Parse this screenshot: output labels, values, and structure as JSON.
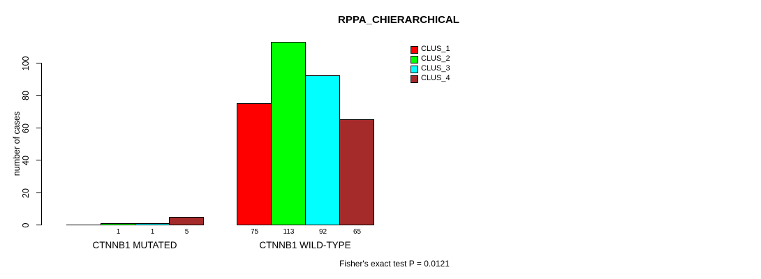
{
  "chart_data": {
    "type": "bar",
    "title": "RPPA_CHIERARCHICAL",
    "xlabel": "",
    "ylabel": "number of cases",
    "categories": [
      "CTNNB1 MUTATED",
      "CTNNB1 WILD-TYPE"
    ],
    "series": [
      {
        "name": "CLUS_1",
        "color": "#ff0000",
        "values": [
          0,
          75
        ]
      },
      {
        "name": "CLUS_2",
        "color": "#00ff00",
        "values": [
          1,
          113
        ]
      },
      {
        "name": "CLUS_3",
        "color": "#00ffff",
        "values": [
          1,
          92
        ]
      },
      {
        "name": "CLUS_4",
        "color": "#a52a2a",
        "values": [
          5,
          65
        ]
      }
    ],
    "bar_value_labels": [
      [
        "",
        "1",
        "1",
        "5"
      ],
      [
        "75",
        "113",
        "92",
        "65"
      ]
    ],
    "yticks": [
      0,
      20,
      40,
      60,
      80,
      100
    ],
    "ylim": [
      0,
      116
    ],
    "grid": false,
    "legend_position": "top-right",
    "legend_entries": [
      "CLUS_1",
      "CLUS_2",
      "CLUS_3",
      "CLUS_4"
    ],
    "annotation": "Fisher's exact test P = 0.0121",
    "axis_color": "#000000",
    "text_color": "#000000",
    "background": "#ffffff"
  }
}
